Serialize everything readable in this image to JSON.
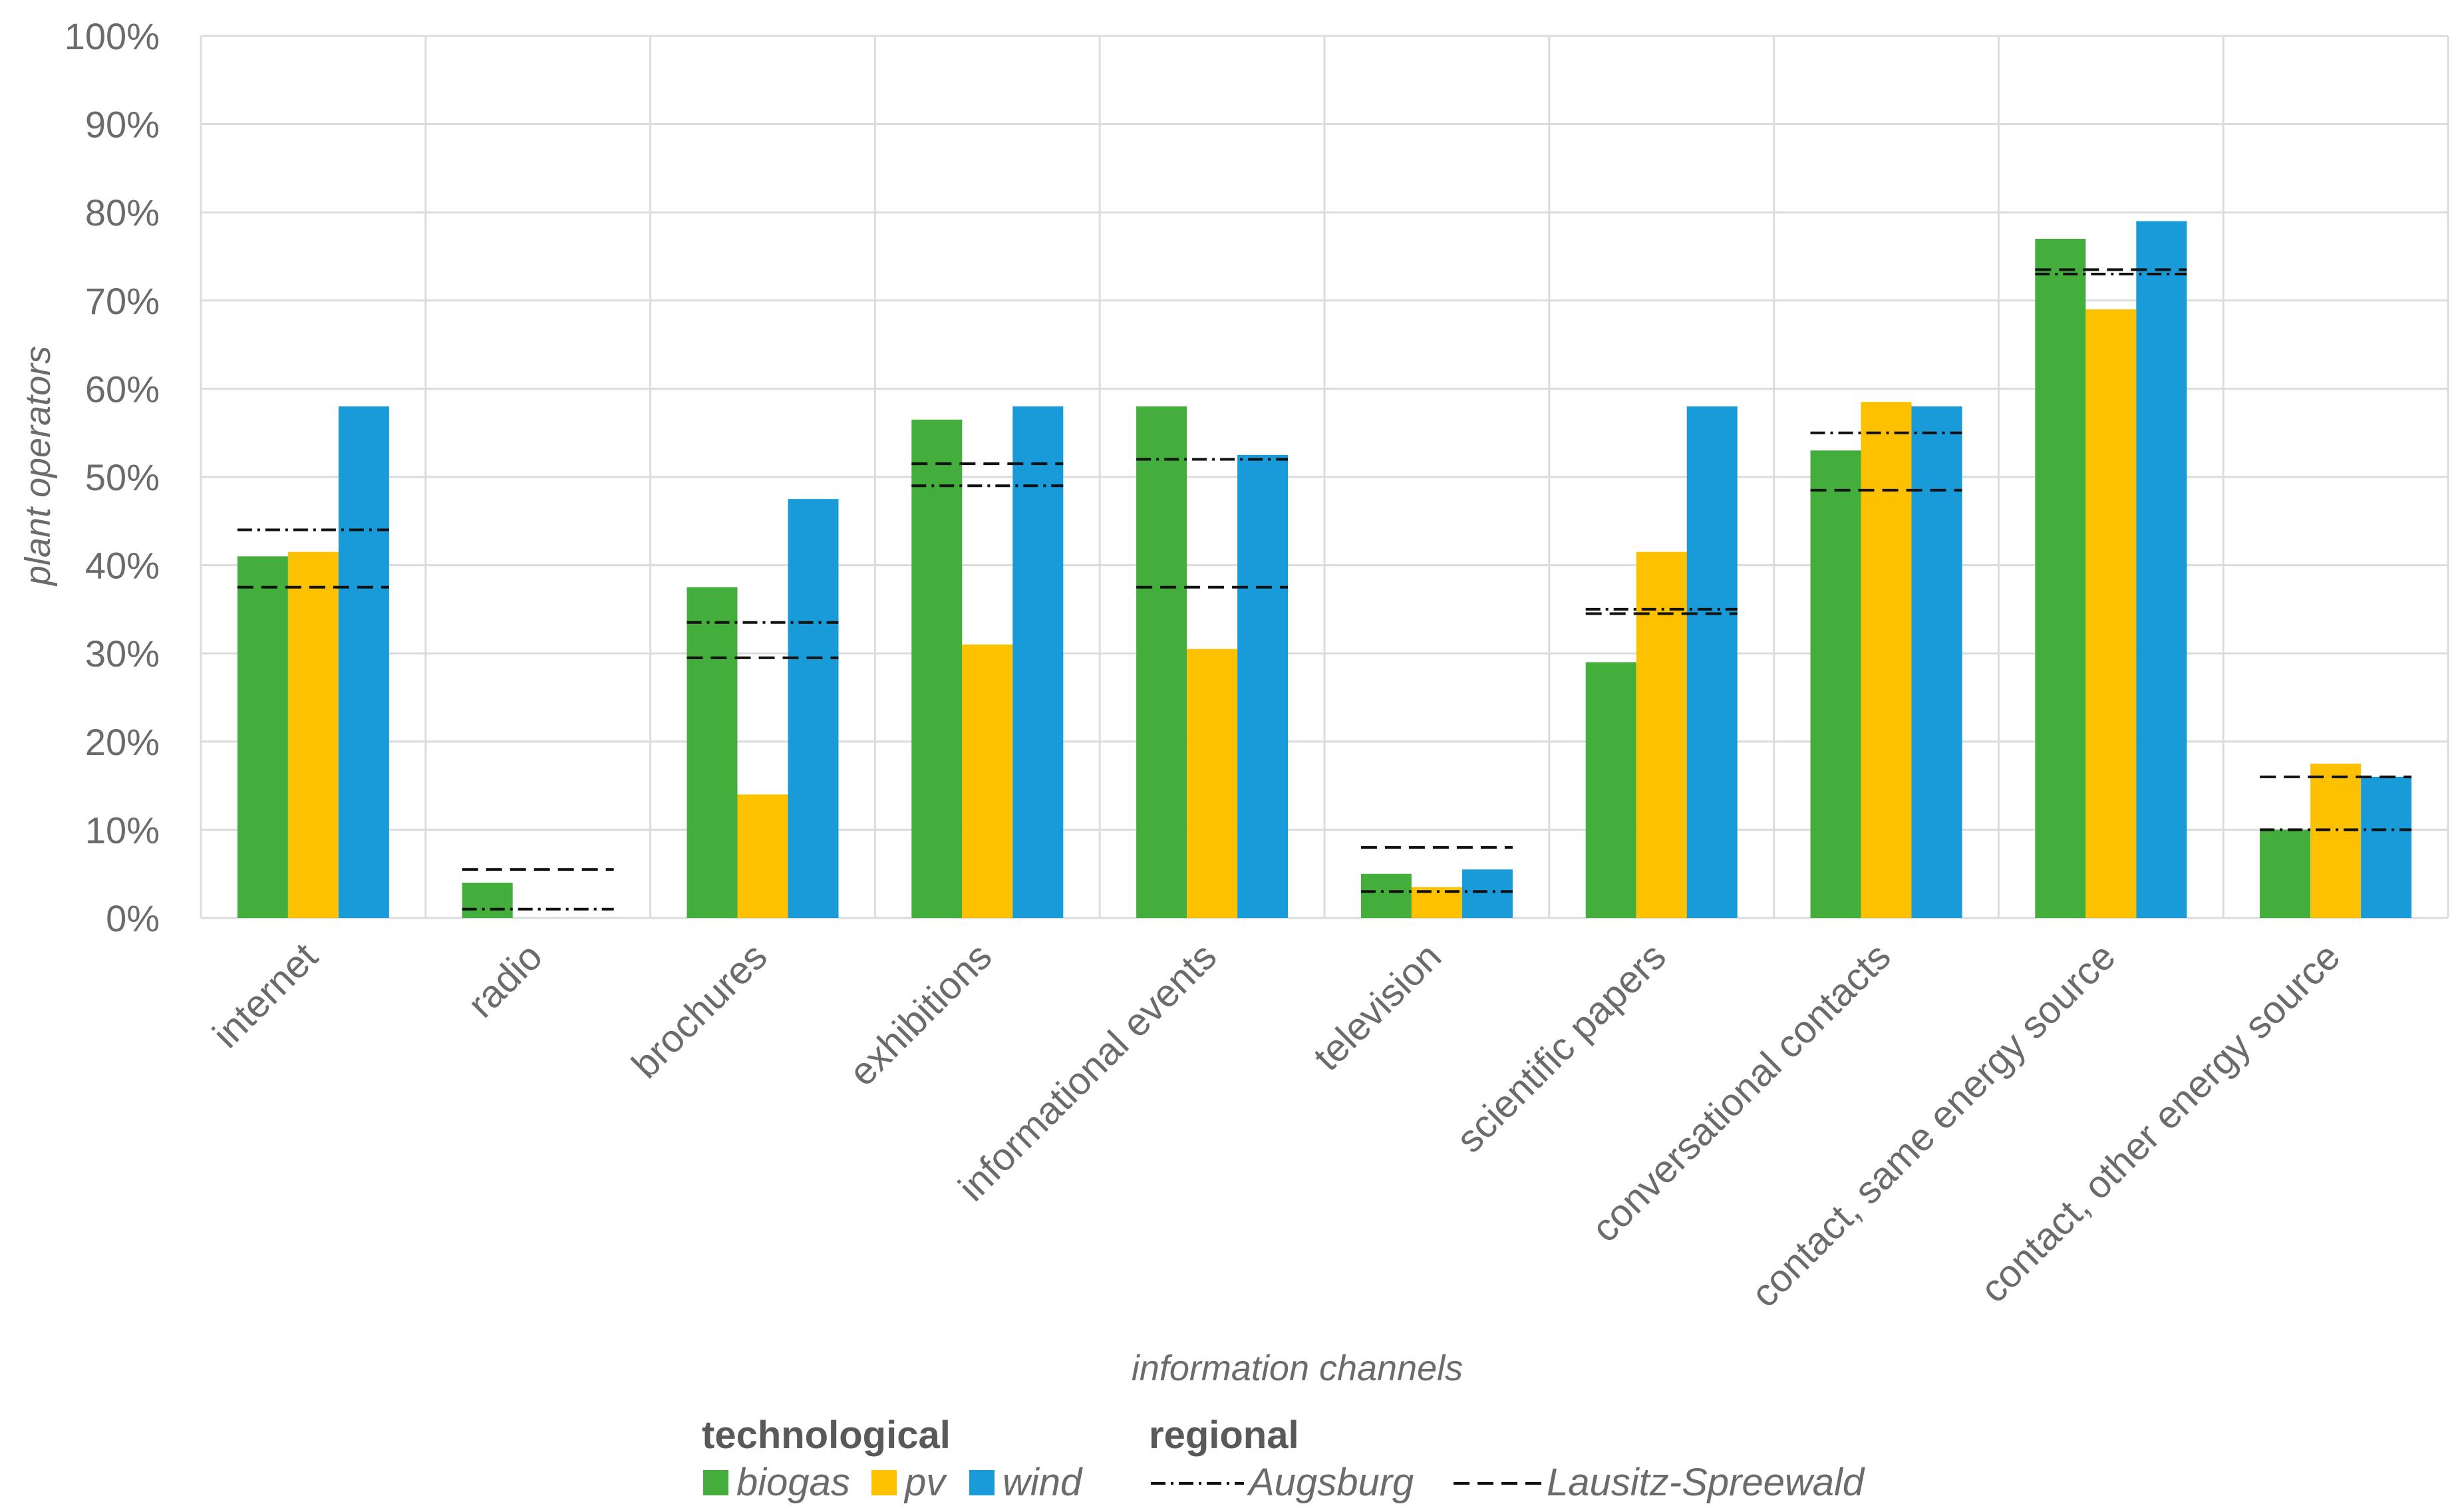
{
  "chart_data": {
    "type": "bar",
    "xlabel": "information channels",
    "ylabel": "plant operators",
    "ylim": [
      0,
      100
    ],
    "y_ticks": [
      "0%",
      "10%",
      "20%",
      "30%",
      "40%",
      "50%",
      "60%",
      "70%",
      "80%",
      "90%",
      "100%"
    ],
    "grid": true,
    "categories": [
      "internet",
      "radio",
      "brochures",
      "exhibitions",
      "informational events",
      "television",
      "scientific papers",
      "conversational contacts",
      "contact, same energy source",
      "contact, other energy source"
    ],
    "series": [
      {
        "name": "biogas",
        "color": "#43ae3b",
        "values": [
          41,
          4,
          37.5,
          56.5,
          58,
          5,
          29,
          53,
          77,
          10
        ]
      },
      {
        "name": "pv",
        "color": "#fdc100",
        "values": [
          41.5,
          0,
          14,
          31,
          30.5,
          3.5,
          41.5,
          58.5,
          69,
          17.5
        ]
      },
      {
        "name": "wind",
        "color": "#1a9bd9",
        "values": [
          58,
          0,
          47.5,
          58,
          52.5,
          5.5,
          58,
          58,
          79,
          16
        ]
      }
    ],
    "reference_lines": [
      {
        "name": "Augsburg",
        "style": "dash-dot",
        "values": [
          44,
          1,
          33.5,
          49,
          52,
          3,
          35,
          55,
          73,
          10
        ]
      },
      {
        "name": "Lausitz-Spreewald",
        "style": "dashed",
        "values": [
          37.5,
          5.5,
          29.5,
          51.5,
          37.5,
          8,
          34.5,
          48.5,
          73.5,
          16
        ]
      }
    ],
    "legend": {
      "placement": "bottom",
      "technological_title": "technological",
      "regional_title": "regional"
    }
  }
}
